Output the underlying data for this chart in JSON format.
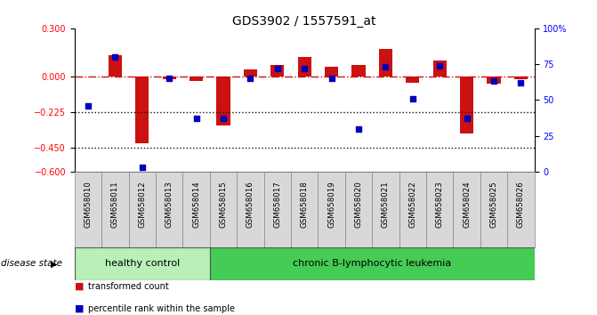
{
  "title": "GDS3902 / 1557591_at",
  "samples": [
    "GSM658010",
    "GSM658011",
    "GSM658012",
    "GSM658013",
    "GSM658014",
    "GSM658015",
    "GSM658016",
    "GSM658017",
    "GSM658018",
    "GSM658019",
    "GSM658020",
    "GSM658021",
    "GSM658022",
    "GSM658023",
    "GSM658024",
    "GSM658025",
    "GSM658026"
  ],
  "red_bars": [
    0.0,
    0.13,
    -0.42,
    -0.02,
    -0.03,
    -0.31,
    0.04,
    0.07,
    0.12,
    0.06,
    0.07,
    0.17,
    -0.04,
    0.1,
    -0.36,
    -0.05,
    -0.02
  ],
  "blue_pct": [
    46,
    80,
    3,
    65,
    37,
    37,
    65,
    72,
    72,
    65,
    30,
    73,
    51,
    74,
    37,
    63,
    62
  ],
  "left_ylim": [
    -0.6,
    0.3
  ],
  "right_ylim": [
    0,
    100
  ],
  "left_yticks": [
    0.3,
    0.0,
    -0.225,
    -0.45,
    -0.6
  ],
  "right_yticks": [
    100,
    75,
    50,
    25,
    0
  ],
  "right_yticklabels": [
    "100%",
    "75",
    "50",
    "25",
    "0"
  ],
  "zero_line": 0.0,
  "dotted_lines": [
    -0.225,
    -0.45
  ],
  "healthy_count": 5,
  "n_total": 17,
  "bar_color": "#cc1111",
  "square_color": "#0000bb",
  "hc_color": "#b8f0b8",
  "lk_color": "#44cc55",
  "label_red": "transformed count",
  "label_blue": "percentile rank within the sample",
  "healthy_label": "healthy control",
  "leukemia_label": "chronic B-lymphocytic leukemia",
  "disease_state_text": "disease state",
  "zero_line_color": "#cc1111",
  "dotted_color": "#111111",
  "title_fontsize": 10,
  "tick_fontsize": 7,
  "legend_fontsize": 7.5,
  "bar_width": 0.5
}
